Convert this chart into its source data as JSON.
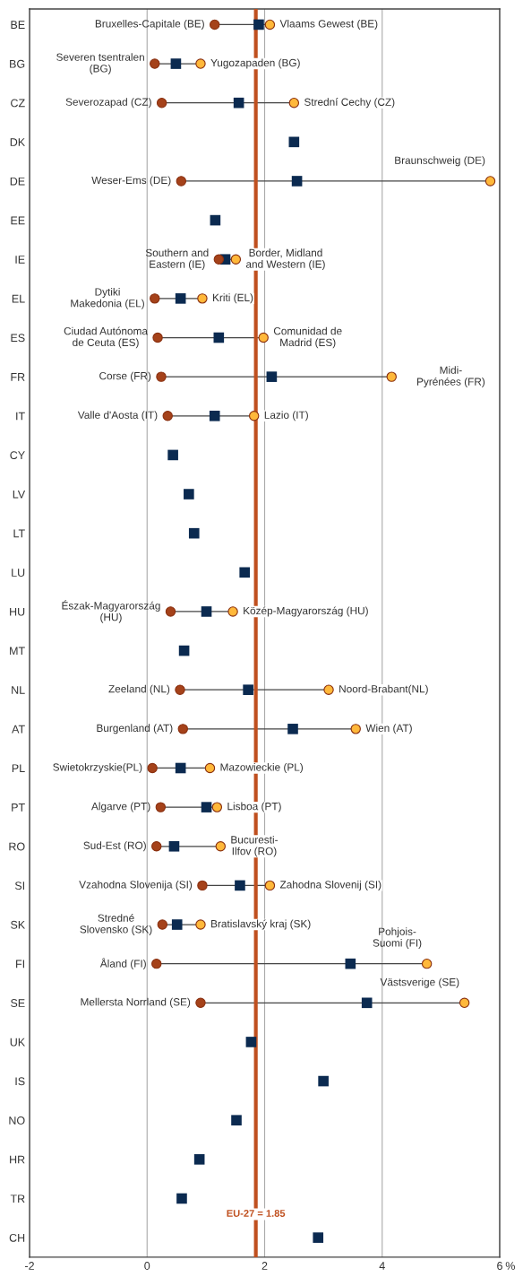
{
  "chart_data": {
    "type": "scatter",
    "orientation": "horizontal",
    "xlabel": "%",
    "xlim": [
      -2,
      6
    ],
    "xticks": [
      -2,
      0,
      2,
      4,
      6
    ],
    "grid": "x",
    "categories": [
      "BE",
      "BG",
      "CZ",
      "DK",
      "DE",
      "EE",
      "IE",
      "EL",
      "ES",
      "FR",
      "IT",
      "CY",
      "LV",
      "LT",
      "LU",
      "HU",
      "MT",
      "NL",
      "AT",
      "PL",
      "PT",
      "RO",
      "SI",
      "SK",
      "FI",
      "SE",
      "UK",
      "IS",
      "NO",
      "HR",
      "TR",
      "CH"
    ],
    "series": [
      {
        "color": "#a5421a",
        "marker": "circle",
        "values": [
          1.15,
          0.13,
          0.25,
          null,
          0.58,
          null,
          1.22,
          0.13,
          0.18,
          0.24,
          0.35,
          null,
          null,
          null,
          null,
          0.4,
          null,
          0.56,
          0.61,
          0.09,
          0.23,
          0.16,
          0.94,
          0.26,
          0.16,
          0.91,
          null,
          null,
          null,
          null,
          null,
          null
        ],
        "value_labels": [
          "Bruxelles-Capitale (BE)",
          "Severen tsentralen\n(BG)",
          "Severozapad (CZ)",
          null,
          "Weser-Ems (DE)",
          null,
          "Southern and\nEastern (IE)",
          "Dytiki\nMakedonia (EL)",
          "Ciudad Autónoma\nde Ceuta (ES)",
          "Corse (FR)",
          "Valle d'Aosta (IT)",
          null,
          null,
          null,
          null,
          "Észak-Magyarország\n(HU)",
          null,
          "Zeeland (NL)",
          "Burgenland (AT)",
          "Swietokrzyskie(PL)",
          "Algarve (PT)",
          "Sud-Est (RO)",
          "Vzahodna Slovenija (SI)",
          "Stredné\nSlovensko (SK)",
          "Åland (FI)",
          "Mellersta Norrland (SE)",
          null,
          null,
          null,
          null,
          null,
          null
        ]
      },
      {
        "color": "#0b2a50",
        "marker": "square",
        "values": [
          1.9,
          0.49,
          1.56,
          2.5,
          2.55,
          1.16,
          1.33,
          0.57,
          1.22,
          2.12,
          1.15,
          0.44,
          0.71,
          0.8,
          1.66,
          1.01,
          0.63,
          1.72,
          2.48,
          0.57,
          1.01,
          0.46,
          1.58,
          0.51,
          3.46,
          3.74,
          1.77,
          3.0,
          1.52,
          0.89,
          0.59,
          2.91
        ]
      },
      {
        "color": "#ffb83a",
        "marker": "circle",
        "values": [
          2.09,
          0.91,
          2.5,
          null,
          5.84,
          null,
          1.51,
          0.94,
          1.98,
          4.16,
          1.82,
          null,
          null,
          null,
          null,
          1.46,
          null,
          3.09,
          3.55,
          1.07,
          1.19,
          1.25,
          2.09,
          0.91,
          4.76,
          5.4,
          null,
          null,
          null,
          null,
          null,
          null
        ],
        "value_labels": [
          "Vlaams Gewest (BE)",
          "Yugozapaden (BG)",
          "Strední Cechy (CZ)",
          null,
          "Braunschweig (DE)",
          null,
          "Border, Midland\nand Western (IE)",
          "Kriti (EL)",
          "Comunidad de\nMadrid (ES)",
          "Midi-\nPyrénées (FR)",
          "Lazio (IT)",
          null,
          null,
          null,
          null,
          "Közép-Magyarország (HU)",
          null,
          "Noord-Brabant(NL)",
          "Wien (AT)",
          "Mazowieckie (PL)",
          "Lisboa (PT)",
          "Bucuresti-\nIlfov (RO)",
          "Zahodna Slovenij (SI)",
          "Bratislavský kraj (SK)",
          "Pohjois-\nSuomi (FI)",
          "Västsverige (SE)",
          null,
          null,
          null,
          null,
          null,
          null
        ]
      }
    ],
    "ref_lines": [
      {
        "axis": "x",
        "value": 1.85,
        "label": "EU-27 = 1.85",
        "color": "#c0501f"
      }
    ]
  }
}
